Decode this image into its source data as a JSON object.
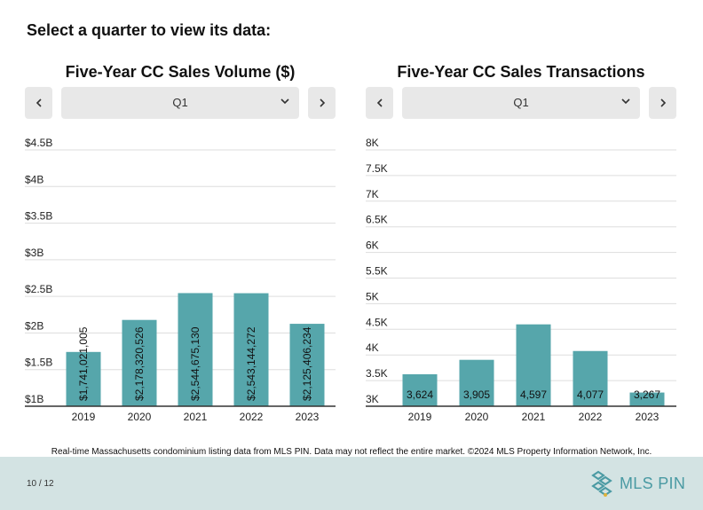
{
  "prompt": "Select a quarter to view its data:",
  "controls": {
    "prev_icon": "chevron-left-icon",
    "next_icon": "chevron-right-icon",
    "select_icon": "chevron-down-icon",
    "left_selected": "Q1",
    "right_selected": "Q1"
  },
  "colors": {
    "bar": "#56a6ab",
    "grid": "#dddddd",
    "axis": "#333333",
    "footer_bg": "#d3e3e3",
    "logo": "#4a9aa3"
  },
  "chart_data": [
    {
      "type": "bar",
      "title": "Five-Year CC Sales Volume ($)",
      "categories": [
        "2019",
        "2020",
        "2021",
        "2022",
        "2023"
      ],
      "values": [
        1741021005,
        2178320526,
        2544675130,
        2543144272,
        2125406234
      ],
      "data_labels": [
        "$1,741,021,005",
        "$2,178,320,526",
        "$2,544,675,130",
        "$2,543,144,272",
        "$2,125,406,234"
      ],
      "ylim": [
        1000000000,
        4500000000
      ],
      "yticks": [
        1000000000,
        1500000000,
        2000000000,
        2500000000,
        3000000000,
        3500000000,
        4000000000,
        4500000000
      ],
      "ytick_labels": [
        "$1B",
        "$1.5B",
        "$2B",
        "$2.5B",
        "$3B",
        "$3.5B",
        "$4B",
        "$4.5B"
      ],
      "grid": true,
      "label_orientation": "vertical"
    },
    {
      "type": "bar",
      "title": "Five-Year CC Sales Transactions",
      "categories": [
        "2019",
        "2020",
        "2021",
        "2022",
        "2023"
      ],
      "values": [
        3624,
        3905,
        4597,
        4077,
        3267
      ],
      "data_labels": [
        "3,624",
        "3,905",
        "4,597",
        "4,077",
        "3,267"
      ],
      "ylim": [
        3000,
        8000
      ],
      "yticks": [
        3000,
        3500,
        4000,
        4500,
        5000,
        5500,
        6000,
        6500,
        7000,
        7500,
        8000
      ],
      "ytick_labels": [
        "3K",
        "3.5K",
        "4K",
        "4.5K",
        "5K",
        "5.5K",
        "6K",
        "6.5K",
        "7K",
        "7.5K",
        "8K"
      ],
      "grid": true,
      "label_orientation": "horizontal"
    }
  ],
  "footnote": "Real-time Massachusetts condominium listing data from MLS PIN. Data may not reflect the entire market. ©2024 MLS Property Information Network, Inc.",
  "footer": {
    "page": "10 / 12",
    "logo_text": "MLS PIN"
  }
}
